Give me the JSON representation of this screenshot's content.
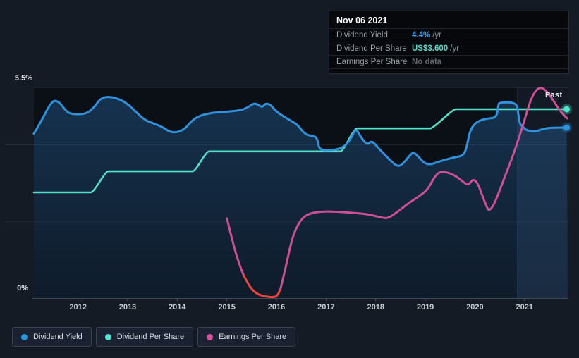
{
  "page": {
    "background": "#151B24",
    "plot_background": "#0B0F16"
  },
  "tooltip": {
    "date": "Nov 06 2021",
    "rows": [
      {
        "label": "Dividend Yield",
        "value": "4.4%",
        "suffix": " /yr",
        "value_color": "#3BA1E8"
      },
      {
        "label": "Dividend Per Share",
        "value": "US$3.600",
        "suffix": " /yr",
        "value_color": "#4ADCC8"
      },
      {
        "label": "Earnings Per Share",
        "value": "No data",
        "suffix": "",
        "value_color": "#5F666E"
      }
    ]
  },
  "legend": {
    "items": [
      {
        "id": "dividend-yield",
        "label": "Dividend Yield",
        "color": "#1E9BE8"
      },
      {
        "id": "dividend-per-share",
        "label": "Dividend Per Share",
        "color": "#57E0CD"
      },
      {
        "id": "earnings-per-share",
        "label": "Earnings Per Share",
        "color": "#D84F9B"
      }
    ]
  },
  "chart_data": {
    "type": "line",
    "title": "Dividend history (yield, dividend per share, earnings per share)",
    "ylabel_top": "5.5%",
    "ylabel_bottom": "0%",
    "past_label": "Past",
    "ylim": [
      0,
      5.5
    ],
    "xlim": [
      2011.11,
      2021.87
    ],
    "x_ticks": [
      2012,
      2013,
      2014,
      2015,
      2016,
      2017,
      2018,
      2019,
      2020,
      2021
    ],
    "gridlines_pct": [
      2,
      4
    ],
    "grid_on": true,
    "legend_position": "bottom-left",
    "past_start_year": 2020.86,
    "series": [
      {
        "name": "Dividend Yield",
        "unit": "percent",
        "area": true,
        "end_dot": true,
        "last_value_label": "4.4% /yr",
        "segments": [
          {
            "color": "#2E93DC",
            "points": [
              [
                2011.11,
                4.29
              ],
              [
                2011.26,
                4.62
              ],
              [
                2011.4,
                4.98
              ],
              [
                2011.51,
                5.17
              ],
              [
                2011.63,
                5.11
              ],
              [
                2011.74,
                4.91
              ],
              [
                2011.85,
                4.8
              ],
              [
                2012.16,
                4.8
              ],
              [
                2012.32,
                4.97
              ],
              [
                2012.45,
                5.21
              ],
              [
                2012.59,
                5.26
              ],
              [
                2012.79,
                5.22
              ],
              [
                2012.99,
                5.08
              ],
              [
                2013.17,
                4.86
              ],
              [
                2013.34,
                4.65
              ],
              [
                2013.52,
                4.56
              ],
              [
                2013.7,
                4.47
              ],
              [
                2013.84,
                4.34
              ],
              [
                2013.99,
                4.32
              ],
              [
                2014.15,
                4.41
              ],
              [
                2014.3,
                4.64
              ],
              [
                2014.45,
                4.76
              ],
              [
                2014.69,
                4.84
              ],
              [
                2015.04,
                4.87
              ],
              [
                2015.31,
                4.91
              ],
              [
                2015.45,
                5.0
              ],
              [
                2015.55,
                5.09
              ],
              [
                2015.64,
                5.04
              ],
              [
                2015.71,
                4.98
              ],
              [
                2015.78,
                5.08
              ],
              [
                2015.87,
                5.06
              ],
              [
                2015.98,
                4.89
              ],
              [
                2016.13,
                4.75
              ],
              [
                2016.29,
                4.63
              ],
              [
                2016.43,
                4.52
              ],
              [
                2016.52,
                4.36
              ],
              [
                2016.6,
                4.27
              ],
              [
                2016.72,
                4.23
              ],
              [
                2016.82,
                4.19
              ],
              [
                2016.86,
                3.88
              ],
              [
                2017.03,
                3.86
              ],
              [
                2017.24,
                3.88
              ],
              [
                2017.4,
                3.99
              ],
              [
                2017.51,
                4.19
              ],
              [
                2017.6,
                4.43
              ],
              [
                2017.68,
                4.25
              ],
              [
                2017.77,
                4.08
              ],
              [
                2017.84,
                4.01
              ],
              [
                2017.91,
                4.1
              ],
              [
                2017.98,
                4.03
              ],
              [
                2018.13,
                3.81
              ],
              [
                2018.3,
                3.59
              ],
              [
                2018.45,
                3.42
              ],
              [
                2018.57,
                3.53
              ],
              [
                2018.7,
                3.75
              ],
              [
                2018.77,
                3.81
              ],
              [
                2018.87,
                3.68
              ],
              [
                2018.97,
                3.53
              ],
              [
                2019.1,
                3.48
              ],
              [
                2019.24,
                3.55
              ],
              [
                2019.43,
                3.62
              ],
              [
                2019.6,
                3.68
              ],
              [
                2019.77,
                3.72
              ],
              [
                2019.84,
                3.97
              ],
              [
                2019.89,
                4.32
              ],
              [
                2019.97,
                4.52
              ],
              [
                2020.08,
                4.63
              ],
              [
                2020.25,
                4.69
              ],
              [
                2020.44,
                4.71
              ],
              [
                2020.47,
                5.05
              ],
              [
                2020.5,
                5.11
              ],
              [
                2020.83,
                5.11
              ],
              [
                2020.87,
                4.87
              ],
              [
                2020.9,
                4.54
              ],
              [
                2020.97,
                4.47
              ],
              [
                2021.03,
                4.38
              ],
              [
                2021.21,
                4.34
              ],
              [
                2021.35,
                4.41
              ],
              [
                2021.52,
                4.45
              ],
              [
                2021.85,
                4.45
              ]
            ]
          }
        ]
      },
      {
        "name": "Dividend Per Share",
        "unit": "percent_of_axis_scaled",
        "dps_levels_usd": [
          2.0,
          2.4,
          2.8,
          3.2,
          3.6
        ],
        "end_dot": true,
        "last_value_label": "US$3.600 /yr",
        "segments": [
          {
            "color": "#53E0C8",
            "points": [
              [
                2011.11,
                2.76
              ],
              [
                2012.22,
                2.76
              ],
              [
                2012.3,
                2.76
              ],
              [
                2012.57,
                3.31
              ],
              [
                2012.65,
                3.31
              ],
              [
                2014.27,
                3.31
              ],
              [
                2014.35,
                3.31
              ],
              [
                2014.6,
                3.83
              ],
              [
                2014.68,
                3.83
              ],
              [
                2017.25,
                3.83
              ],
              [
                2017.33,
                3.83
              ],
              [
                2017.58,
                4.43
              ],
              [
                2017.66,
                4.43
              ],
              [
                2019.06,
                4.43
              ],
              [
                2019.14,
                4.43
              ],
              [
                2019.57,
                4.93
              ],
              [
                2019.65,
                4.93
              ],
              [
                2021.85,
                4.93
              ]
            ]
          }
        ]
      },
      {
        "name": "Earnings Per Share",
        "unit": "overlay_scaled",
        "end_dot": false,
        "last_value_label": "No data",
        "segments": [
          {
            "color": "#CE4F96",
            "points": [
              [
                2015.0,
                2.08
              ],
              [
                2015.06,
                1.77
              ],
              [
                2015.14,
                1.36
              ],
              [
                2015.24,
                0.92
              ],
              [
                2015.34,
                0.59
              ]
            ]
          },
          {
            "color": "#F0433C",
            "points": [
              [
                2015.34,
                0.59
              ],
              [
                2015.43,
                0.37
              ],
              [
                2015.52,
                0.2
              ],
              [
                2015.64,
                0.09
              ],
              [
                2015.77,
                0.04
              ],
              [
                2015.94,
                0.02
              ],
              [
                2016.02,
                0.06
              ],
              [
                2016.08,
                0.24
              ]
            ]
          },
          {
            "color": "#CE4F96",
            "points": [
              [
                2016.08,
                0.24
              ],
              [
                2016.13,
                0.5
              ],
              [
                2016.19,
                0.83
              ],
              [
                2016.26,
                1.25
              ],
              [
                2016.33,
                1.6
              ],
              [
                2016.42,
                1.89
              ],
              [
                2016.53,
                2.1
              ],
              [
                2016.67,
                2.21
              ],
              [
                2016.89,
                2.26
              ],
              [
                2017.17,
                2.26
              ],
              [
                2017.52,
                2.23
              ],
              [
                2017.84,
                2.19
              ],
              [
                2018.13,
                2.1
              ],
              [
                2018.25,
                2.08
              ],
              [
                2018.45,
                2.26
              ],
              [
                2018.66,
                2.48
              ],
              [
                2018.89,
                2.67
              ],
              [
                2019.06,
                2.85
              ],
              [
                2019.18,
                3.16
              ],
              [
                2019.3,
                3.31
              ],
              [
                2019.48,
                3.27
              ],
              [
                2019.65,
                3.16
              ],
              [
                2019.81,
                2.98
              ],
              [
                2019.88,
                2.96
              ],
              [
                2019.96,
                3.11
              ],
              [
                2020.05,
                3.02
              ],
              [
                2020.15,
                2.67
              ],
              [
                2020.25,
                2.34
              ],
              [
                2020.29,
                2.28
              ],
              [
                2020.38,
                2.43
              ],
              [
                2020.49,
                2.78
              ],
              [
                2020.63,
                3.26
              ],
              [
                2020.77,
                3.73
              ],
              [
                2020.91,
                4.27
              ],
              [
                2021.05,
                4.87
              ],
              [
                2021.15,
                5.26
              ],
              [
                2021.25,
                5.46
              ],
              [
                2021.34,
                5.5
              ],
              [
                2021.44,
                5.41
              ],
              [
                2021.55,
                5.22
              ],
              [
                2021.69,
                4.93
              ],
              [
                2021.79,
                4.78
              ],
              [
                2021.86,
                4.69
              ]
            ]
          }
        ]
      }
    ]
  }
}
